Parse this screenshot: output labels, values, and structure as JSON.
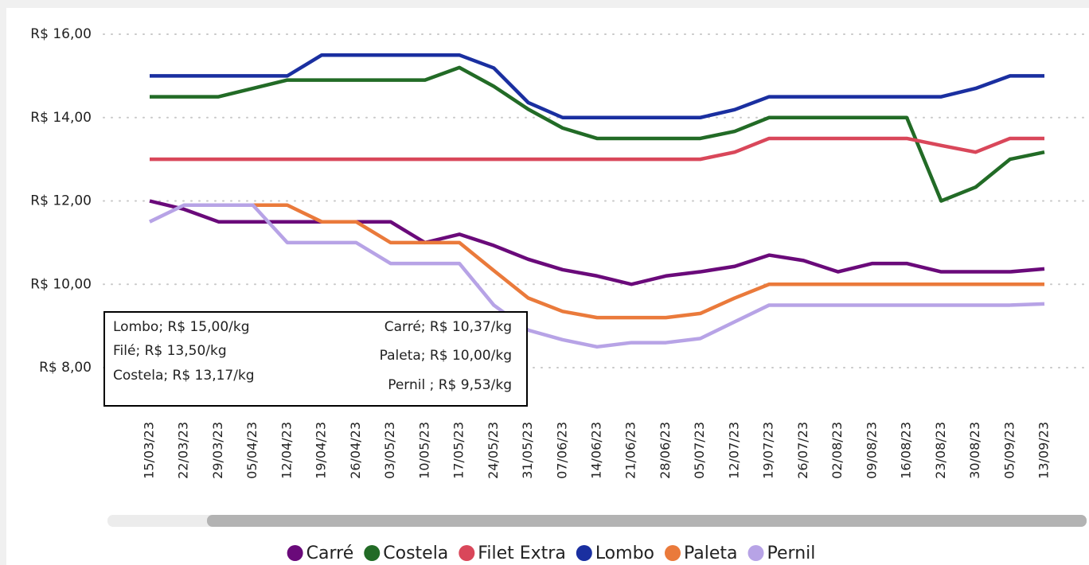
{
  "chart_data": {
    "type": "line",
    "categories": [
      "15/03/23",
      "22/03/23",
      "29/03/23",
      "05/04/23",
      "12/04/23",
      "19/04/23",
      "26/04/23",
      "03/05/23",
      "10/05/23",
      "17/05/23",
      "24/05/23",
      "31/05/23",
      "07/06/23",
      "14/06/23",
      "21/06/23",
      "28/06/23",
      "05/07/23",
      "12/07/23",
      "19/07/23",
      "26/07/23",
      "02/08/23",
      "09/08/23",
      "16/08/23",
      "23/08/23",
      "30/08/23",
      "05/09/23",
      "13/09/23"
    ],
    "series": [
      {
        "name": "Carré",
        "color": "#6a0a7a",
        "values": [
          12,
          11.8,
          11.5,
          11.5,
          11.5,
          11.5,
          11.5,
          11.5,
          11.0,
          11.2,
          10.93,
          10.6,
          10.35,
          10.2,
          10.0,
          10.2,
          10.3,
          10.43,
          10.7,
          10.57,
          10.3,
          10.5,
          10.5,
          10.3,
          10.3,
          10.3,
          10.37
        ]
      },
      {
        "name": "Costela",
        "color": "#226b26",
        "values": [
          14.5,
          14.5,
          14.5,
          14.7,
          14.9,
          14.9,
          14.9,
          14.9,
          14.9,
          15.2,
          14.75,
          14.2,
          13.75,
          13.5,
          13.5,
          13.5,
          13.5,
          13.67,
          14,
          14,
          14,
          14,
          14,
          12,
          12.33,
          13,
          13.17
        ]
      },
      {
        "name": "Filet Extra",
        "color": "#d9475a",
        "values": [
          13,
          13,
          13,
          13,
          13,
          13,
          13,
          13,
          13,
          13,
          13,
          13,
          13,
          13,
          13,
          13,
          13,
          13.17,
          13.5,
          13.5,
          13.5,
          13.5,
          13.5,
          13.33,
          13.17,
          13.5,
          13.5
        ]
      },
      {
        "name": "Lombo",
        "color": "#1a2fa0",
        "values": [
          15,
          15,
          15,
          15,
          15,
          15.5,
          15.5,
          15.5,
          15.5,
          15.5,
          15.19,
          14.36,
          14,
          14,
          14,
          14,
          14,
          14.19,
          14.5,
          14.5,
          14.5,
          14.5,
          14.5,
          14.5,
          14.7,
          15,
          15
        ]
      },
      {
        "name": "Paleta",
        "color": "#ea7a3b",
        "values": [
          null,
          11.9,
          11.9,
          11.9,
          11.9,
          11.5,
          11.5,
          11.0,
          11.0,
          11.0,
          10.33,
          9.67,
          9.35,
          9.2,
          9.2,
          9.2,
          9.3,
          9.67,
          10,
          10,
          10,
          10,
          10,
          10,
          10,
          10,
          10
        ]
      },
      {
        "name": "Pernil",
        "color": "#b7a3e6",
        "values": [
          11.5,
          11.9,
          11.9,
          11.9,
          11.0,
          11.0,
          11.0,
          10.5,
          10.5,
          10.5,
          9.5,
          8.9,
          8.67,
          8.5,
          8.6,
          8.6,
          8.7,
          9.1,
          9.5,
          9.5,
          9.5,
          9.5,
          9.5,
          9.5,
          9.5,
          9.5,
          9.53
        ]
      }
    ],
    "ylim": [
      8,
      16
    ],
    "yticks": [
      {
        "value": 8,
        "label": "R$ 8,00"
      },
      {
        "value": 10,
        "label": "R$ 10,00"
      },
      {
        "value": 12,
        "label": "R$ 12,00"
      },
      {
        "value": 14,
        "label": "R$ 14,00"
      },
      {
        "value": 16,
        "label": "R$ 16,00"
      }
    ],
    "grid": true,
    "annotations": [
      "Lombo; R$ 15,00/kg",
      "Filé; R$ 13,50/kg",
      "Costela; R$ 13,17/kg",
      "Carré; R$ 10,37/kg",
      "Paleta; R$ 10,00/kg",
      "Pernil ; R$ 9,53/kg"
    ]
  }
}
